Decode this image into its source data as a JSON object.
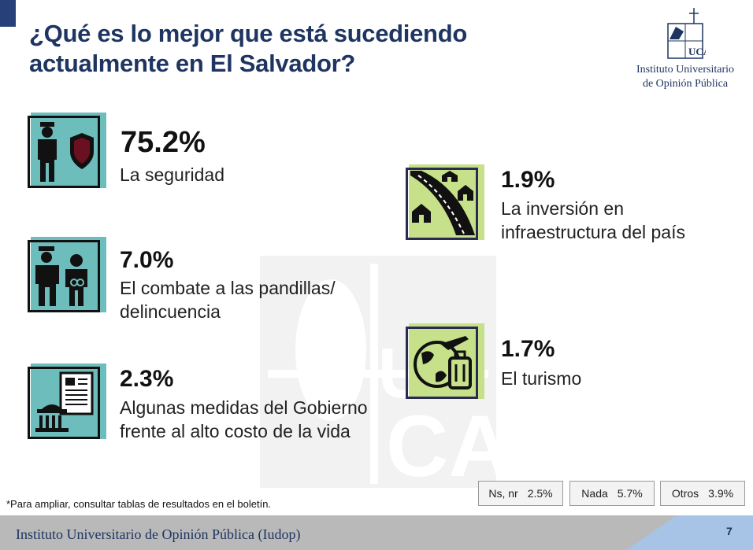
{
  "title_line1": "¿Qué es lo mejor que está sucediendo",
  "title_line2": "actualmente en El Salvador?",
  "logo": {
    "line1": "Instituto Universitario",
    "line2": "de Opinión Pública"
  },
  "items": [
    {
      "pct": "75.2%",
      "line1": "La seguridad",
      "line2": "",
      "icon": "police-shield-icon"
    },
    {
      "pct": "7.0%",
      "line1": "El combate a las pandillas/",
      "line2": "delincuencia",
      "icon": "police-arrest-icon"
    },
    {
      "pct": "2.3%",
      "line1": "Algunas medidas del Gobierno",
      "line2": "frente al alto costo de la vida",
      "icon": "government-document-icon"
    },
    {
      "pct": "1.9%",
      "line1": "La inversión en",
      "line2": "infraestructura del país",
      "icon": "road-houses-icon"
    },
    {
      "pct": "1.7%",
      "line1": "El turismo",
      "line2": "",
      "icon": "globe-luggage-icon"
    }
  ],
  "other_responses": [
    {
      "label": "Ns, nr",
      "value": "2.5%"
    },
    {
      "label": "Nada",
      "value": "5.7%"
    },
    {
      "label": "Otros",
      "value": "3.9%"
    }
  ],
  "footnote": "*Para ampliar, consultar tablas de resultados en el boletín.",
  "footer": {
    "institution": "Instituto Universitario de Opinión Pública (Iudop)",
    "page": "7"
  },
  "colors": {
    "teal": "#6cbdbb",
    "lime": "#c7e08a",
    "navy": "#1f3561",
    "footer_gray": "#b9b9b9",
    "footer_blue": "#a7c3e6"
  }
}
